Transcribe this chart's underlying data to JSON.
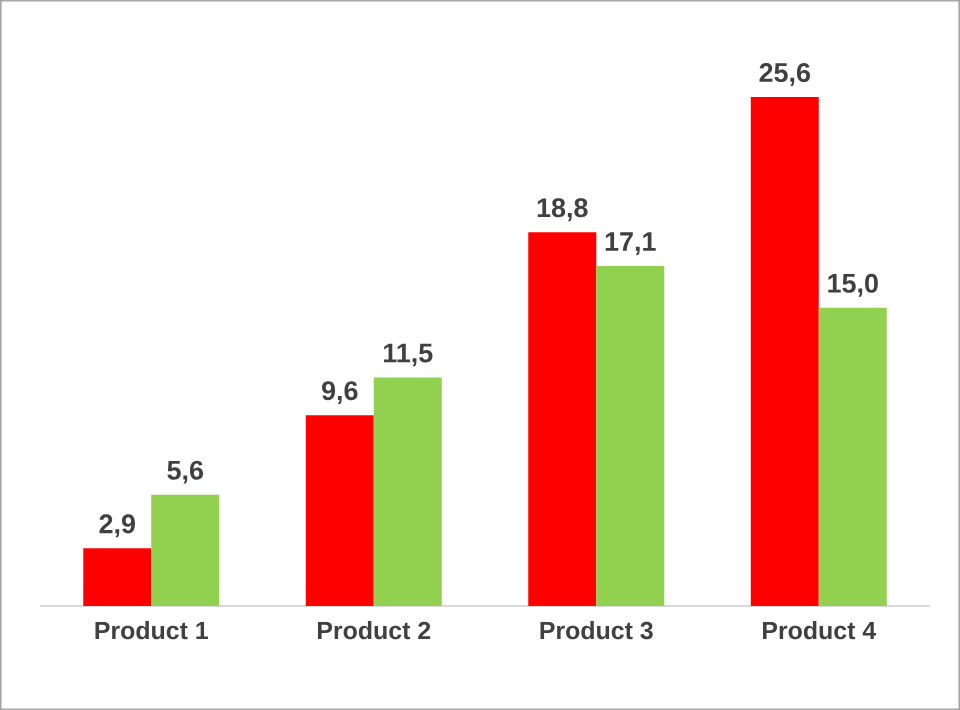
{
  "chart_data": {
    "type": "bar",
    "categories": [
      "Product 1",
      "Product 2",
      "Product 3",
      "Product 4"
    ],
    "series": [
      {
        "color": "#ff0000",
        "values": [
          2.9,
          9.6,
          18.8,
          25.6
        ],
        "value_labels": [
          "2,9",
          "9,6",
          "18,8",
          "25,6"
        ]
      },
      {
        "color": "#92d050",
        "values": [
          5.6,
          11.5,
          17.1,
          15.0
        ],
        "value_labels": [
          "5,6",
          "11,5",
          "17,1",
          "15,0"
        ]
      }
    ]
  }
}
